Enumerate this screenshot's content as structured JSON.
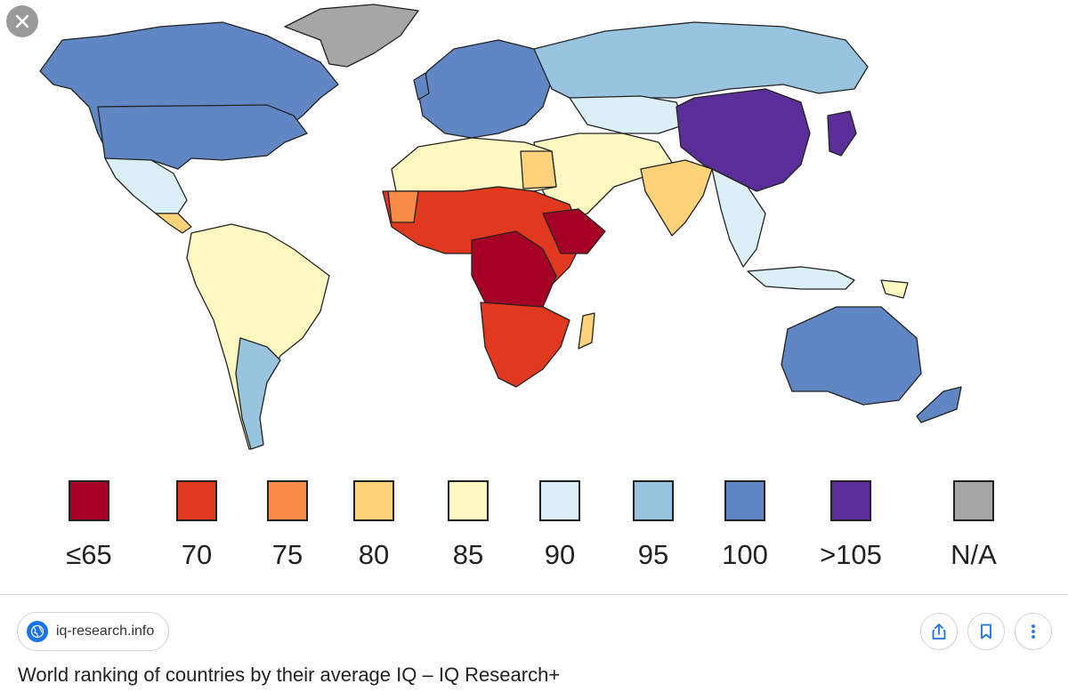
{
  "viewer": {
    "close_icon": "close-icon",
    "legend": [
      {
        "label": "≤65",
        "color": "#a50026"
      },
      {
        "label": "70",
        "color": "#e0391f"
      },
      {
        "label": "75",
        "color": "#f88c47"
      },
      {
        "label": "80",
        "color": "#fed27a"
      },
      {
        "label": "85",
        "color": "#fdf8c0"
      },
      {
        "label": "90",
        "color": "#dbf0f6"
      },
      {
        "label": "95",
        "color": "#98c4e0"
      },
      {
        "label": "100",
        "color": "#6186c4"
      },
      {
        "label": ">105",
        "color": "#5a2d99"
      },
      {
        "label": "N/A",
        "color": "#a6a6a6"
      }
    ]
  },
  "result": {
    "source": "iq-research.info",
    "source_icon": "globe-icon",
    "actions": [
      "share-icon",
      "bookmark-icon",
      "more-vertical-icon"
    ],
    "caption": "World ranking of countries by their average IQ – IQ Research+"
  },
  "colors": {
    "accent": "#1a73e8",
    "close_bg": "#9a9a9a"
  }
}
